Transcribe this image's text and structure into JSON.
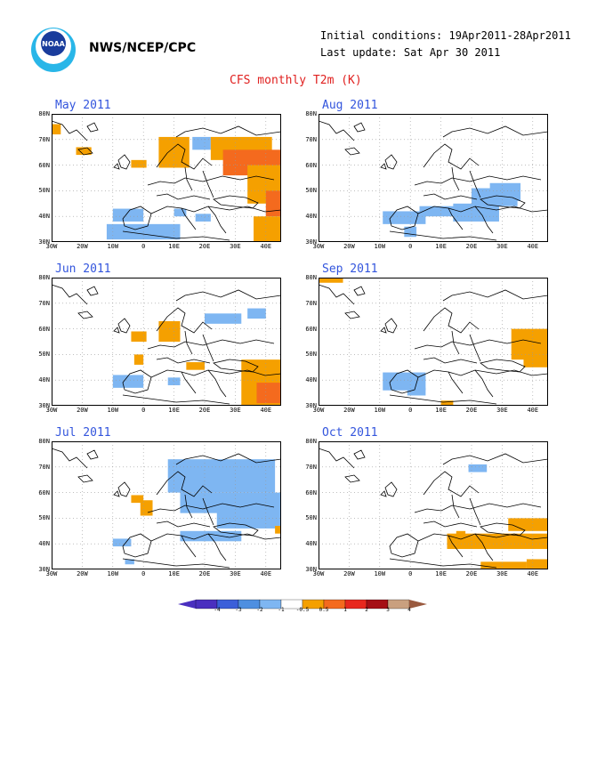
{
  "header": {
    "org": "NWS/NCEP/CPC",
    "logo_text": "NOAA",
    "initial_conditions": "Initial conditions: 19Apr2011-28Apr2011",
    "last_update": "Last update: Sat Apr 30 2011",
    "title": "CFS monthly T2m (K)"
  },
  "axes": {
    "y_ticks": [
      "80N",
      "70N",
      "60N",
      "50N",
      "40N",
      "30N"
    ],
    "x_ticks": [
      "30W",
      "20W",
      "10W",
      "0",
      "10E",
      "20E",
      "30E",
      "40E"
    ]
  },
  "colors": {
    "deep_blue": "#4a2fbf",
    "blue": "#3b5fd9",
    "mid_blue": "#4f8fe0",
    "light_blue": "#7eb6f2",
    "orange": "#f5a000",
    "orange_red": "#f46a1e",
    "red": "#e8281e",
    "dark_red": "#a50f15",
    "tan": "#c9a07f",
    "brown": "#9a5a3f"
  },
  "panels": [
    {
      "id": "may",
      "title": "May 2011",
      "col": 0,
      "row": 0,
      "cells": [
        {
          "lon": -30,
          "lat": 72,
          "w": 3,
          "h": 4,
          "c": "orange"
        },
        {
          "lon": -22,
          "lat": 64,
          "w": 5,
          "h": 3,
          "c": "orange"
        },
        {
          "lon": -4,
          "lat": 59,
          "w": 5,
          "h": 3,
          "c": "orange"
        },
        {
          "lon": 5,
          "lat": 59,
          "w": 10,
          "h": 12,
          "c": "orange"
        },
        {
          "lon": 16,
          "lat": 66,
          "w": 6,
          "h": 5,
          "c": "light_blue"
        },
        {
          "lon": 22,
          "lat": 62,
          "w": 20,
          "h": 9,
          "c": "orange"
        },
        {
          "lon": 26,
          "lat": 56,
          "w": 19,
          "h": 10,
          "c": "orange_red"
        },
        {
          "lon": 34,
          "lat": 45,
          "w": 11,
          "h": 15,
          "c": "orange"
        },
        {
          "lon": 40,
          "lat": 40,
          "w": 5,
          "h": 10,
          "c": "orange_red"
        },
        {
          "lon": 36,
          "lat": 30,
          "w": 9,
          "h": 10,
          "c": "orange"
        },
        {
          "lon": -10,
          "lat": 38,
          "w": 10,
          "h": 5,
          "c": "light_blue"
        },
        {
          "lon": -12,
          "lat": 31,
          "w": 24,
          "h": 6,
          "c": "light_blue"
        },
        {
          "lon": 10,
          "lat": 40,
          "w": 4,
          "h": 3,
          "c": "light_blue"
        },
        {
          "lon": 17,
          "lat": 38,
          "w": 5,
          "h": 3,
          "c": "light_blue"
        }
      ]
    },
    {
      "id": "aug",
      "title": "Aug 2011",
      "col": 1,
      "row": 0,
      "cells": [
        {
          "lon": -9,
          "lat": 37,
          "w": 14,
          "h": 5,
          "c": "light_blue"
        },
        {
          "lon": -2,
          "lat": 32,
          "w": 4,
          "h": 4,
          "c": "light_blue"
        },
        {
          "lon": 3,
          "lat": 40,
          "w": 12,
          "h": 4,
          "c": "light_blue"
        },
        {
          "lon": 14,
          "lat": 38,
          "w": 15,
          "h": 7,
          "c": "light_blue"
        },
        {
          "lon": 20,
          "lat": 44,
          "w": 15,
          "h": 7,
          "c": "light_blue"
        },
        {
          "lon": 26,
          "lat": 46,
          "w": 10,
          "h": 7,
          "c": "light_blue"
        }
      ]
    },
    {
      "id": "jun",
      "title": "Jun 2011",
      "col": 0,
      "row": 1,
      "cells": [
        {
          "lon": -4,
          "lat": 55,
          "w": 5,
          "h": 4,
          "c": "orange"
        },
        {
          "lon": 5,
          "lat": 55,
          "w": 7,
          "h": 8,
          "c": "orange"
        },
        {
          "lon": -3,
          "lat": 46,
          "w": 3,
          "h": 4,
          "c": "orange"
        },
        {
          "lon": 20,
          "lat": 62,
          "w": 12,
          "h": 4,
          "c": "light_blue"
        },
        {
          "lon": 34,
          "lat": 64,
          "w": 6,
          "h": 4,
          "c": "light_blue"
        },
        {
          "lon": -10,
          "lat": 37,
          "w": 10,
          "h": 5,
          "c": "light_blue"
        },
        {
          "lon": 8,
          "lat": 38,
          "w": 4,
          "h": 3,
          "c": "light_blue"
        },
        {
          "lon": 14,
          "lat": 44,
          "w": 6,
          "h": 3,
          "c": "orange"
        },
        {
          "lon": 32,
          "lat": 30,
          "w": 13,
          "h": 18,
          "c": "orange"
        },
        {
          "lon": 37,
          "lat": 31,
          "w": 8,
          "h": 8,
          "c": "orange_red"
        }
      ]
    },
    {
      "id": "sep",
      "title": "Sep 2011",
      "col": 1,
      "row": 1,
      "cells": [
        {
          "lon": -30,
          "lat": 78,
          "w": 8,
          "h": 2,
          "c": "orange"
        },
        {
          "lon": -9,
          "lat": 36,
          "w": 14,
          "h": 7,
          "c": "light_blue"
        },
        {
          "lon": -1,
          "lat": 34,
          "w": 6,
          "h": 3,
          "c": "light_blue"
        },
        {
          "lon": 10,
          "lat": 30,
          "w": 4,
          "h": 2,
          "c": "orange"
        },
        {
          "lon": 33,
          "lat": 48,
          "w": 12,
          "h": 12,
          "c": "orange"
        },
        {
          "lon": 37,
          "lat": 45,
          "w": 8,
          "h": 4,
          "c": "orange"
        }
      ]
    },
    {
      "id": "jul",
      "title": "Jul 2011",
      "col": 0,
      "row": 2,
      "cells": [
        {
          "lon": -4,
          "lat": 56,
          "w": 4,
          "h": 3,
          "c": "orange"
        },
        {
          "lon": -1,
          "lat": 51,
          "w": 4,
          "h": 6,
          "c": "orange"
        },
        {
          "lon": 8,
          "lat": 60,
          "w": 35,
          "h": 13,
          "c": "light_blue"
        },
        {
          "lon": 12,
          "lat": 52,
          "w": 33,
          "h": 8,
          "c": "light_blue"
        },
        {
          "lon": 24,
          "lat": 46,
          "w": 21,
          "h": 7,
          "c": "light_blue"
        },
        {
          "lon": 12,
          "lat": 41,
          "w": 20,
          "h": 4,
          "c": "light_blue"
        },
        {
          "lon": -10,
          "lat": 39,
          "w": 6,
          "h": 3,
          "c": "light_blue"
        },
        {
          "lon": -6,
          "lat": 32,
          "w": 3,
          "h": 2,
          "c": "light_blue"
        },
        {
          "lon": 43,
          "lat": 44,
          "w": 2,
          "h": 3,
          "c": "orange"
        }
      ]
    },
    {
      "id": "oct",
      "title": "Oct 2011",
      "col": 1,
      "row": 2,
      "cells": [
        {
          "lon": 19,
          "lat": 68,
          "w": 6,
          "h": 3,
          "c": "light_blue"
        },
        {
          "lon": 32,
          "lat": 45,
          "w": 13,
          "h": 5,
          "c": "orange"
        },
        {
          "lon": 12,
          "lat": 38,
          "w": 33,
          "h": 6,
          "c": "orange"
        },
        {
          "lon": 23,
          "lat": 30,
          "w": 15,
          "h": 3,
          "c": "orange"
        },
        {
          "lon": 38,
          "lat": 30,
          "w": 7,
          "h": 4,
          "c": "orange"
        },
        {
          "lon": 15,
          "lat": 42,
          "w": 3,
          "h": 3,
          "c": "orange"
        }
      ]
    }
  ],
  "colorbar": {
    "labels": [
      "-4",
      "-3",
      "-2",
      "-1",
      "-0.5",
      "0.5",
      "1",
      "2",
      "3",
      "4"
    ],
    "bins": [
      "deep_blue",
      "blue",
      "mid_blue",
      "light_blue",
      "white",
      "orange",
      "orange_red",
      "red",
      "dark_red",
      "tan"
    ]
  }
}
